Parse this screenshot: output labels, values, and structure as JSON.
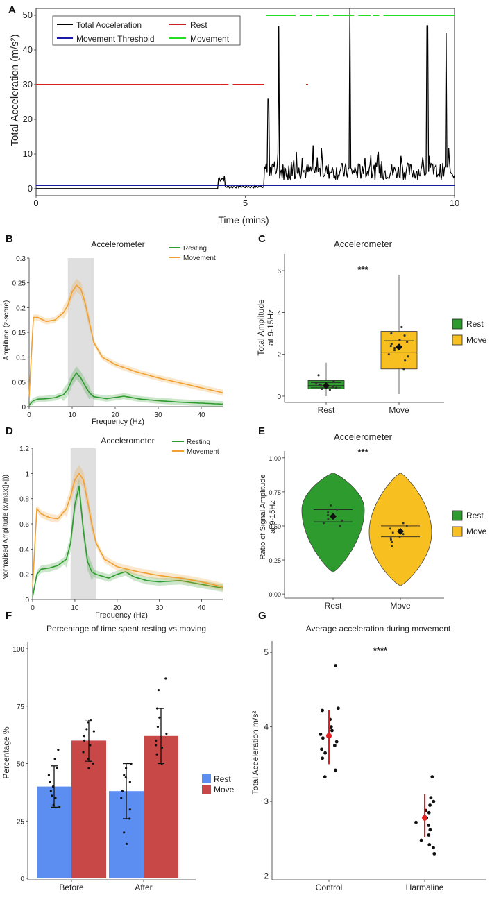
{
  "figure_letters": [
    "A",
    "B",
    "C",
    "D",
    "E",
    "F",
    "G"
  ],
  "colors": {
    "total": "#000000",
    "threshold": "#1a1aa6",
    "rest": "#d62020",
    "movement": "#22dd22",
    "resting_green": "#2e9b2e",
    "movement_orange": "#f0a030",
    "box_green": "#2e9b2e",
    "box_yellow": "#f7c020",
    "bar_blue": "#5b8ef0",
    "bar_red": "#c84848",
    "highlight_red": "#e02020"
  },
  "chart_data": [
    {
      "id": "A",
      "type": "line",
      "xlabel": "Time (mins)",
      "ylabel": "Total Acceleration (m/s²)",
      "xlim": [
        0,
        10
      ],
      "ylim": [
        -2,
        52
      ],
      "xticks": [
        "0",
        "5",
        "10"
      ],
      "yticks": [
        "0",
        "10",
        "20",
        "30",
        "40",
        "50"
      ],
      "legend": [
        "Total Acceleration",
        "Rest",
        "Movement Threshold",
        "Movement"
      ],
      "threshold": 1,
      "rest_level": 30,
      "rest_segments": [
        [
          0,
          4.4
        ],
        [
          4.4,
          4.6
        ],
        [
          4.7,
          5.45
        ],
        [
          6.45,
          6.5
        ]
      ],
      "movement_level": 50,
      "movement_segments": [
        [
          5.5,
          6.2
        ],
        [
          6.3,
          6.6
        ],
        [
          6.7,
          7.0
        ],
        [
          7.1,
          7.6
        ],
        [
          7.7,
          8.0
        ],
        [
          8.05,
          8.2
        ],
        [
          8.3,
          10.0
        ]
      ],
      "spikes": [
        [
          5.55,
          26
        ],
        [
          5.8,
          47
        ],
        [
          7.5,
          52
        ],
        [
          9.35,
          47
        ],
        [
          9.8,
          45
        ]
      ]
    },
    {
      "id": "B",
      "type": "line",
      "title": "Accelerometer",
      "xlabel": "Frequency (Hz)",
      "ylabel": "Amplitude (z-score)",
      "xlim": [
        0,
        45
      ],
      "ylim": [
        0,
        0.3
      ],
      "xticks": [
        "0",
        "10",
        "20",
        "30",
        "40"
      ],
      "yticks": [
        "0",
        "0.05",
        "0.1",
        "0.15",
        "0.2",
        "0.25",
        "0.3"
      ],
      "shade": [
        9,
        15
      ],
      "series": [
        {
          "name": "Resting",
          "x": [
            0,
            1,
            2,
            4,
            6,
            8,
            9,
            10,
            11,
            12,
            13,
            14,
            15,
            18,
            22,
            26,
            30,
            35,
            40,
            45
          ],
          "y": [
            0.003,
            0.012,
            0.015,
            0.016,
            0.018,
            0.024,
            0.035,
            0.055,
            0.068,
            0.058,
            0.042,
            0.028,
            0.02,
            0.016,
            0.021,
            0.015,
            0.012,
            0.009,
            0.007,
            0.005
          ]
        },
        {
          "name": "Movement",
          "x": [
            0,
            1,
            2,
            4,
            6,
            8,
            9,
            10,
            11,
            12,
            13,
            14,
            15,
            17,
            20,
            25,
            30,
            35,
            40,
            45
          ],
          "y": [
            0.02,
            0.18,
            0.18,
            0.172,
            0.175,
            0.19,
            0.205,
            0.232,
            0.245,
            0.238,
            0.21,
            0.17,
            0.13,
            0.1,
            0.085,
            0.07,
            0.058,
            0.048,
            0.038,
            0.028
          ]
        }
      ]
    },
    {
      "id": "C",
      "type": "box",
      "title": "Accelerometer",
      "ylabel": "Total Amplitude at 9-15Hz",
      "ylim": [
        -0.3,
        6.8
      ],
      "yticks": [
        "0",
        "2",
        "4",
        "6"
      ],
      "categories": [
        "Rest",
        "Move"
      ],
      "significance": "***",
      "boxes": [
        {
          "name": "Rest",
          "whisker_low": 0,
          "q1": 0.35,
          "median": 0.5,
          "q3": 0.75,
          "whisker_high": 1.6,
          "mean": 0.5,
          "ci": [
            0.4,
            0.65
          ]
        },
        {
          "name": "Move",
          "whisker_low": 0.1,
          "q1": 1.3,
          "median": 2.1,
          "q3": 3.1,
          "whisker_high": 5.8,
          "mean": 2.35,
          "ci": [
            2.1,
            2.65
          ]
        }
      ],
      "points": [
        [
          0.3,
          0.4,
          0.5,
          0.6,
          0.55,
          0.45,
          1.0,
          0.35,
          0.7
        ],
        [
          1.3,
          1.7,
          2.0,
          2.2,
          2.4,
          2.6,
          2.9,
          3.0,
          3.3,
          2.3,
          2.5,
          1.9,
          2.7
        ]
      ],
      "legend": [
        "Rest",
        "Move"
      ]
    },
    {
      "id": "D",
      "type": "line",
      "title": "Accelerometer",
      "xlabel": "Frequency (Hz)",
      "ylabel": "Normalised Amplitude (xᵢ/max(|x|))",
      "xlim": [
        0,
        45
      ],
      "ylim": [
        0,
        1.2
      ],
      "xticks": [
        "0",
        "10",
        "20",
        "30",
        "40"
      ],
      "yticks": [
        "0",
        "0.2",
        "0.4",
        "0.6",
        "0.8",
        "1",
        "1.2"
      ],
      "shade": [
        9,
        15
      ],
      "series": [
        {
          "name": "Resting",
          "x": [
            0,
            1,
            2,
            4,
            6,
            8,
            9,
            10,
            11,
            12,
            13,
            14,
            15,
            18,
            20,
            22,
            24,
            27,
            30,
            35,
            40,
            45
          ],
          "y": [
            0.02,
            0.2,
            0.24,
            0.25,
            0.27,
            0.32,
            0.45,
            0.75,
            0.9,
            0.55,
            0.3,
            0.22,
            0.2,
            0.17,
            0.2,
            0.22,
            0.18,
            0.15,
            0.14,
            0.15,
            0.12,
            0.09
          ]
        },
        {
          "name": "Movement",
          "x": [
            0,
            1,
            2,
            4,
            6,
            8,
            9,
            10,
            11,
            12,
            13,
            14,
            15,
            17,
            20,
            25,
            30,
            35,
            40,
            45
          ],
          "y": [
            0.1,
            0.72,
            0.68,
            0.65,
            0.64,
            0.72,
            0.82,
            0.95,
            1.0,
            0.95,
            0.78,
            0.6,
            0.45,
            0.32,
            0.26,
            0.22,
            0.19,
            0.17,
            0.14,
            0.1
          ]
        }
      ]
    },
    {
      "id": "E",
      "type": "violin",
      "title": "Accelerometer",
      "ylabel": "Ratio of Signal Amplitude at 9-15Hz",
      "ylim": [
        -0.03,
        1.05
      ],
      "yticks": [
        "0.00",
        "0.25",
        "0.50",
        "0.75",
        "1.00"
      ],
      "categories": [
        "Rest",
        "Move"
      ],
      "significance": "***",
      "violins": [
        {
          "name": "Rest",
          "min": 0.16,
          "max": 0.89,
          "mode": 0.62,
          "mean": 0.57,
          "ci": [
            0.53,
            0.62
          ]
        },
        {
          "name": "Move",
          "min": 0.06,
          "max": 0.89,
          "mode": 0.45,
          "mean": 0.46,
          "ci": [
            0.42,
            0.5
          ]
        }
      ],
      "points": [
        [
          0.52,
          0.55,
          0.58,
          0.6,
          0.62,
          0.65,
          0.56,
          0.54,
          0.5
        ],
        [
          0.35,
          0.38,
          0.4,
          0.42,
          0.44,
          0.46,
          0.48,
          0.5,
          0.52,
          0.45,
          0.41
        ]
      ],
      "legend": [
        "Rest",
        "Move"
      ]
    },
    {
      "id": "F",
      "type": "bar",
      "title": "Percentage of time spent resting vs moving",
      "ylabel": "Percentage %",
      "ylim": [
        0,
        100
      ],
      "yticks": [
        "0",
        "25",
        "50",
        "75",
        "100"
      ],
      "categories": [
        "Before",
        "After"
      ],
      "series": [
        {
          "name": "Rest",
          "values": [
            40,
            38
          ],
          "err": [
            9,
            12
          ]
        },
        {
          "name": "Move",
          "values": [
            60,
            62
          ],
          "err": [
            9,
            12
          ]
        }
      ],
      "points": [
        [
          [
            32,
            35,
            38,
            40,
            42,
            45,
            48,
            52,
            56,
            31,
            36
          ],
          [
            15,
            20,
            26,
            30,
            35,
            38,
            42,
            45,
            48,
            50,
            44
          ]
        ],
        [
          [
            48,
            52,
            55,
            58,
            60,
            62,
            65,
            68,
            69,
            64,
            50
          ],
          [
            50,
            54,
            57,
            60,
            63,
            66,
            70,
            74,
            82,
            87,
            58
          ]
        ]
      ],
      "legend": [
        "Rest",
        "Move"
      ]
    },
    {
      "id": "G",
      "type": "scatter",
      "title": "Average acceleration during movement",
      "ylabel": "Total Acceleration m/s²",
      "ylim": [
        1.95,
        5.15
      ],
      "yticks": [
        "2",
        "3",
        "4",
        "5"
      ],
      "categories": [
        "Control",
        "Harmaline"
      ],
      "significance": "****",
      "groups": [
        {
          "name": "Control",
          "values": [
            4.82,
            4.25,
            4.22,
            4.1,
            4.0,
            3.95,
            3.9,
            3.85,
            3.8,
            3.75,
            3.7,
            3.65,
            3.58,
            3.42,
            3.33
          ],
          "mean": 3.88,
          "sd": [
            3.5,
            4.22
          ]
        },
        {
          "name": "Harmaline",
          "values": [
            3.33,
            3.05,
            3.0,
            2.95,
            2.88,
            2.85,
            2.78,
            2.72,
            2.68,
            2.62,
            2.55,
            2.48,
            2.42,
            2.38,
            2.3
          ],
          "mean": 2.78,
          "sd": [
            2.52,
            3.1
          ]
        }
      ]
    }
  ]
}
